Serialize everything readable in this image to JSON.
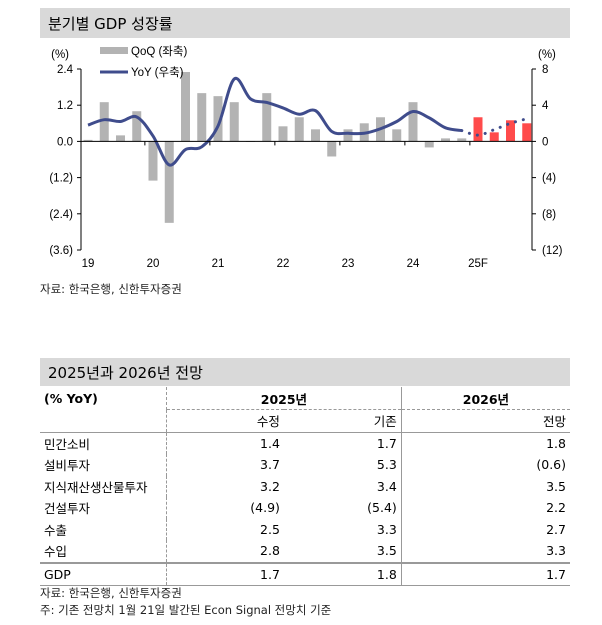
{
  "chart_title": "분기별 GDP 성장률",
  "chart_source": "자료: 한국은행, 신한투자증권",
  "chart_data": {
    "type": "bar+line",
    "left_unit": "(%)",
    "right_unit": "(%)",
    "left_ylim": [
      -3.6,
      2.4
    ],
    "left_ticks": [
      "2.4",
      "1.2",
      "0.0",
      "(1.2)",
      "(2.4)",
      "(3.6)"
    ],
    "right_ylim": [
      -12,
      8
    ],
    "right_ticks": [
      "8",
      "4",
      "0",
      "(4)",
      "(8)",
      "(12)"
    ],
    "x_tick_labels": [
      "19",
      "20",
      "21",
      "22",
      "23",
      "24",
      "25F"
    ],
    "quarters": [
      "2019Q1",
      "2019Q2",
      "2019Q3",
      "2019Q4",
      "2020Q1",
      "2020Q2",
      "2020Q3",
      "2020Q4",
      "2021Q1",
      "2021Q2",
      "2021Q3",
      "2021Q4",
      "2022Q1",
      "2022Q2",
      "2022Q3",
      "2022Q4",
      "2023Q1",
      "2023Q2",
      "2023Q3",
      "2023Q4",
      "2024Q1",
      "2024Q2",
      "2024Q3",
      "2024Q4",
      "2025Q1",
      "2025Q2",
      "2025Q3",
      "2025Q4"
    ],
    "forecast_from_index": 24,
    "series": [
      {
        "name": "QoQ (좌축)",
        "type": "bar",
        "axis": "left",
        "color": "#b3b3b3",
        "forecast_color": "#ff4b4b",
        "values": [
          0.05,
          1.3,
          0.2,
          1.0,
          -1.3,
          -2.7,
          2.3,
          1.6,
          1.5,
          1.3,
          0.0,
          1.6,
          0.5,
          0.8,
          0.4,
          -0.5,
          0.4,
          0.6,
          0.8,
          0.4,
          1.3,
          -0.2,
          0.1,
          0.1,
          0.8,
          0.3,
          0.7,
          0.6
        ]
      },
      {
        "name": "YoY (우축)",
        "type": "line",
        "axis": "right",
        "color": "#3f4c8c",
        "values": [
          1.8,
          2.4,
          2.2,
          2.7,
          0.6,
          -2.6,
          -0.9,
          -0.6,
          1.7,
          6.9,
          4.7,
          4.3,
          3.7,
          3.0,
          3.4,
          1.1,
          0.9,
          0.9,
          1.4,
          2.2,
          3.3,
          2.6,
          1.5,
          1.2,
          0.7,
          1.3,
          2.0,
          2.5
        ]
      }
    ]
  },
  "table": {
    "title": "2025년과 2026년 전망",
    "unit": "(% YoY)",
    "group_2025": "2025년",
    "group_2026": "2026년",
    "cols": [
      "수정",
      "기존",
      "전망"
    ],
    "rows": [
      {
        "label": "민간소비",
        "v": [
          "1.4",
          "1.7",
          "1.8"
        ]
      },
      {
        "label": "설비투자",
        "v": [
          "3.7",
          "5.3",
          "(0.6)"
        ]
      },
      {
        "label": "지식재산생산물투자",
        "v": [
          "3.2",
          "3.4",
          "3.5"
        ]
      },
      {
        "label": "건설투자",
        "v": [
          "(4.9)",
          "(5.4)",
          "2.2"
        ]
      },
      {
        "label": "수출",
        "v": [
          "2.5",
          "3.3",
          "2.7"
        ]
      },
      {
        "label": "수입",
        "v": [
          "2.8",
          "3.5",
          "3.3"
        ]
      }
    ],
    "gdp": {
      "label": "GDP",
      "v": [
        "1.7",
        "1.8",
        "1.7"
      ]
    },
    "source": "자료: 한국은행, 신한투자증권",
    "note": "주: 기존 전망치 1월 21일 발간된 Econ Signal 전망치 기준"
  }
}
